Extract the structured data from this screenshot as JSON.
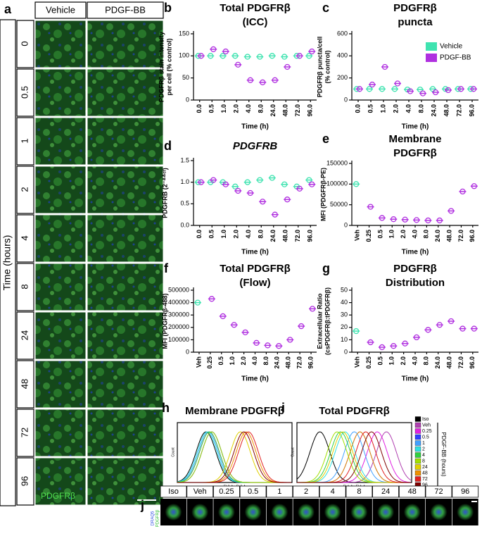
{
  "image_panel": {
    "letter": "a",
    "columns": [
      "Vehicle",
      "PDGF-BB"
    ],
    "rows": [
      "0",
      "0.5",
      "1",
      "2",
      "4",
      "8",
      "24",
      "48",
      "72",
      "96"
    ],
    "axis_label": "Time (hours)",
    "stain": "PDGFRβ"
  },
  "chart_data": [
    {
      "type": "dot",
      "letter": "b",
      "title": [
        "Total PDGFRβ",
        "(ICC)"
      ],
      "ylabel": [
        "PDGFRβ stain intensity",
        "per cell (% control)"
      ],
      "xlabel": "Time (h)",
      "categories": [
        "0.0",
        "0.5",
        "1.0",
        "2.0",
        "4.0",
        "8.0",
        "24.0",
        "48.0",
        "72.0",
        "96.0"
      ],
      "series": [
        {
          "name": "Vehicle",
          "color": "#3fe3b0",
          "values": [
            100,
            100,
            100,
            100,
            98,
            98,
            100,
            98,
            100,
            100
          ]
        },
        {
          "name": "PDGF-BB",
          "color": "#b030e0",
          "values": [
            100,
            115,
            110,
            80,
            45,
            40,
            45,
            75,
            100,
            110
          ]
        }
      ],
      "ylim": [
        0,
        150
      ],
      "yticks": [
        0,
        50,
        100,
        150
      ]
    },
    {
      "type": "dot",
      "letter": "c",
      "title": [
        "PDGFRβ",
        "puncta"
      ],
      "ylabel": [
        "PDGFRβ puncta/cell",
        "(% control)"
      ],
      "xlabel": "Time (h)",
      "categories": [
        "0.0",
        "0.5",
        "1.0",
        "2.0",
        "4.0",
        "8.0",
        "24.0",
        "48.0",
        "72.0",
        "96.0"
      ],
      "series": [
        {
          "name": "Vehicle",
          "color": "#3fe3b0",
          "values": [
            100,
            100,
            100,
            100,
            95,
            95,
            100,
            100,
            100,
            100
          ]
        },
        {
          "name": "PDGF-BB",
          "color": "#b030e0",
          "values": [
            100,
            140,
            300,
            150,
            80,
            60,
            70,
            90,
            100,
            100
          ]
        }
      ],
      "ylim": [
        0,
        600
      ],
      "yticks": [
        0,
        200,
        400,
        600
      ],
      "legend": "top-right"
    },
    {
      "type": "dot",
      "letter": "d",
      "title": [
        "PDGFRB"
      ],
      "title_italic": true,
      "ylabel": [
        "PDGFRB (2⁻ᐞᐞᶜᵗ)"
      ],
      "xlabel": "Time (h)",
      "categories": [
        "0.0",
        "0.5",
        "1.0",
        "2.0",
        "4.0",
        "8.0",
        "24.0",
        "48.0",
        "72.0",
        "96.0"
      ],
      "series": [
        {
          "name": "Vehicle",
          "color": "#3fe3b0",
          "values": [
            1.0,
            1.0,
            1.0,
            0.9,
            1.0,
            1.05,
            1.1,
            0.95,
            0.9,
            1.05
          ]
        },
        {
          "name": "PDGF-BB",
          "color": "#b030e0",
          "values": [
            1.0,
            1.05,
            0.95,
            0.8,
            0.75,
            0.55,
            0.25,
            0.6,
            0.85,
            0.95
          ]
        }
      ],
      "ylim": [
        0,
        1.5
      ],
      "yticks": [
        {
          "value": 0,
          "label": "0.0"
        },
        0.5,
        {
          "value": 1,
          "label": "1.0"
        },
        1.5
      ]
    },
    {
      "type": "dot",
      "letter": "e",
      "title": [
        "Membrane",
        "PDGFRβ"
      ],
      "ylabel": [
        "MFI (PDGFRβ-PE)"
      ],
      "xlabel": "Time (h)",
      "categories": [
        "Veh",
        "0.25",
        "0.5",
        "1.0",
        "2.0",
        "4.0",
        "8.0",
        "24.0",
        "48.0",
        "72.0",
        "96.0"
      ],
      "series": [
        {
          "name": "Vehicle",
          "color": "#3fe3b0",
          "values": [
            100000,
            null,
            null,
            null,
            null,
            null,
            null,
            null,
            null,
            null,
            null
          ]
        },
        {
          "name": "PDGF-BB",
          "color": "#b030e0",
          "values": [
            null,
            45000,
            18000,
            15000,
            14000,
            13000,
            12000,
            12000,
            35000,
            82000,
            95000
          ]
        }
      ],
      "ylim": [
        0,
        150000
      ],
      "yticks": [
        0,
        50000,
        100000,
        150000
      ]
    },
    {
      "type": "dot",
      "letter": "f",
      "title": [
        "Total PDGFRβ",
        "(Flow)"
      ],
      "ylabel": [
        "MFI (PDGFRβ-488)"
      ],
      "xlabel": "Time (h)",
      "categories": [
        "Veh",
        "0.25",
        "0.5",
        "1.0",
        "2.0",
        "4.0",
        "8.0",
        "24.0",
        "48.0",
        "72.0",
        "96.0"
      ],
      "series": [
        {
          "name": "Vehicle",
          "color": "#3fe3b0",
          "values": [
            400000,
            null,
            null,
            null,
            null,
            null,
            null,
            null,
            null,
            null,
            null
          ]
        },
        {
          "name": "PDGF-BB",
          "color": "#b030e0",
          "values": [
            null,
            430000,
            290000,
            220000,
            160000,
            75000,
            55000,
            50000,
            100000,
            210000,
            350000
          ]
        }
      ],
      "ylim": [
        0,
        500000
      ],
      "yticks": [
        0,
        100000,
        200000,
        300000,
        400000,
        500000
      ]
    },
    {
      "type": "dot",
      "letter": "g",
      "title": [
        "PDGFRβ",
        "Distribution"
      ],
      "ylabel": [
        "Extracellular Ratio",
        "(csPDGFRβ:tPDGFRβ)"
      ],
      "xlabel": "Time (h)",
      "categories": [
        "Veh",
        "0.25",
        "0.5",
        "1.0",
        "2.0",
        "4.0",
        "8.0",
        "24.0",
        "48.0",
        "72.0",
        "96.0"
      ],
      "series": [
        {
          "name": "Vehicle",
          "color": "#3fe3b0",
          "values": [
            17,
            null,
            null,
            null,
            null,
            null,
            null,
            null,
            null,
            null,
            null
          ]
        },
        {
          "name": "PDGF-BB",
          "color": "#b030e0",
          "values": [
            null,
            8,
            4,
            5,
            7,
            12,
            18,
            22,
            25,
            19,
            19
          ]
        }
      ],
      "ylim": [
        0,
        50
      ],
      "yticks": [
        0,
        10,
        20,
        30,
        40,
        50
      ]
    }
  ],
  "flow": {
    "panels": [
      {
        "letter": "h",
        "title": "Membrane PDGFRβ",
        "xlabel": "FL3-A:: FL3-A"
      },
      {
        "letter": "i",
        "title": "Total PDGFRβ",
        "xlabel": "FL1-A:: FL1-A"
      }
    ],
    "ylabel": "Count",
    "legend": [
      {
        "name": "Iso",
        "color": "#000000"
      },
      {
        "name": "Veh",
        "color": "#b040b0"
      },
      {
        "name": "0.25",
        "color": "#e020e0"
      },
      {
        "name": "0.5",
        "color": "#3040ff"
      },
      {
        "name": "1",
        "color": "#40a0ff"
      },
      {
        "name": "2",
        "color": "#30e0e0"
      },
      {
        "name": "4",
        "color": "#30d040"
      },
      {
        "name": "8",
        "color": "#a0e000"
      },
      {
        "name": "24",
        "color": "#e0d000"
      },
      {
        "name": "48",
        "color": "#f09000"
      },
      {
        "name": "72",
        "color": "#e02020"
      },
      {
        "name": "96",
        "color": "#800000"
      }
    ],
    "legend_title": "PDGF-BB (hours)"
  },
  "cell_panel": {
    "letter": "j",
    "labels": [
      "Iso",
      "Veh",
      "0.25",
      "0.5",
      "1",
      "2",
      "4",
      "8",
      "24",
      "48",
      "72",
      "96"
    ],
    "stains": [
      "DRAQ5",
      "PDGFRβ"
    ]
  }
}
